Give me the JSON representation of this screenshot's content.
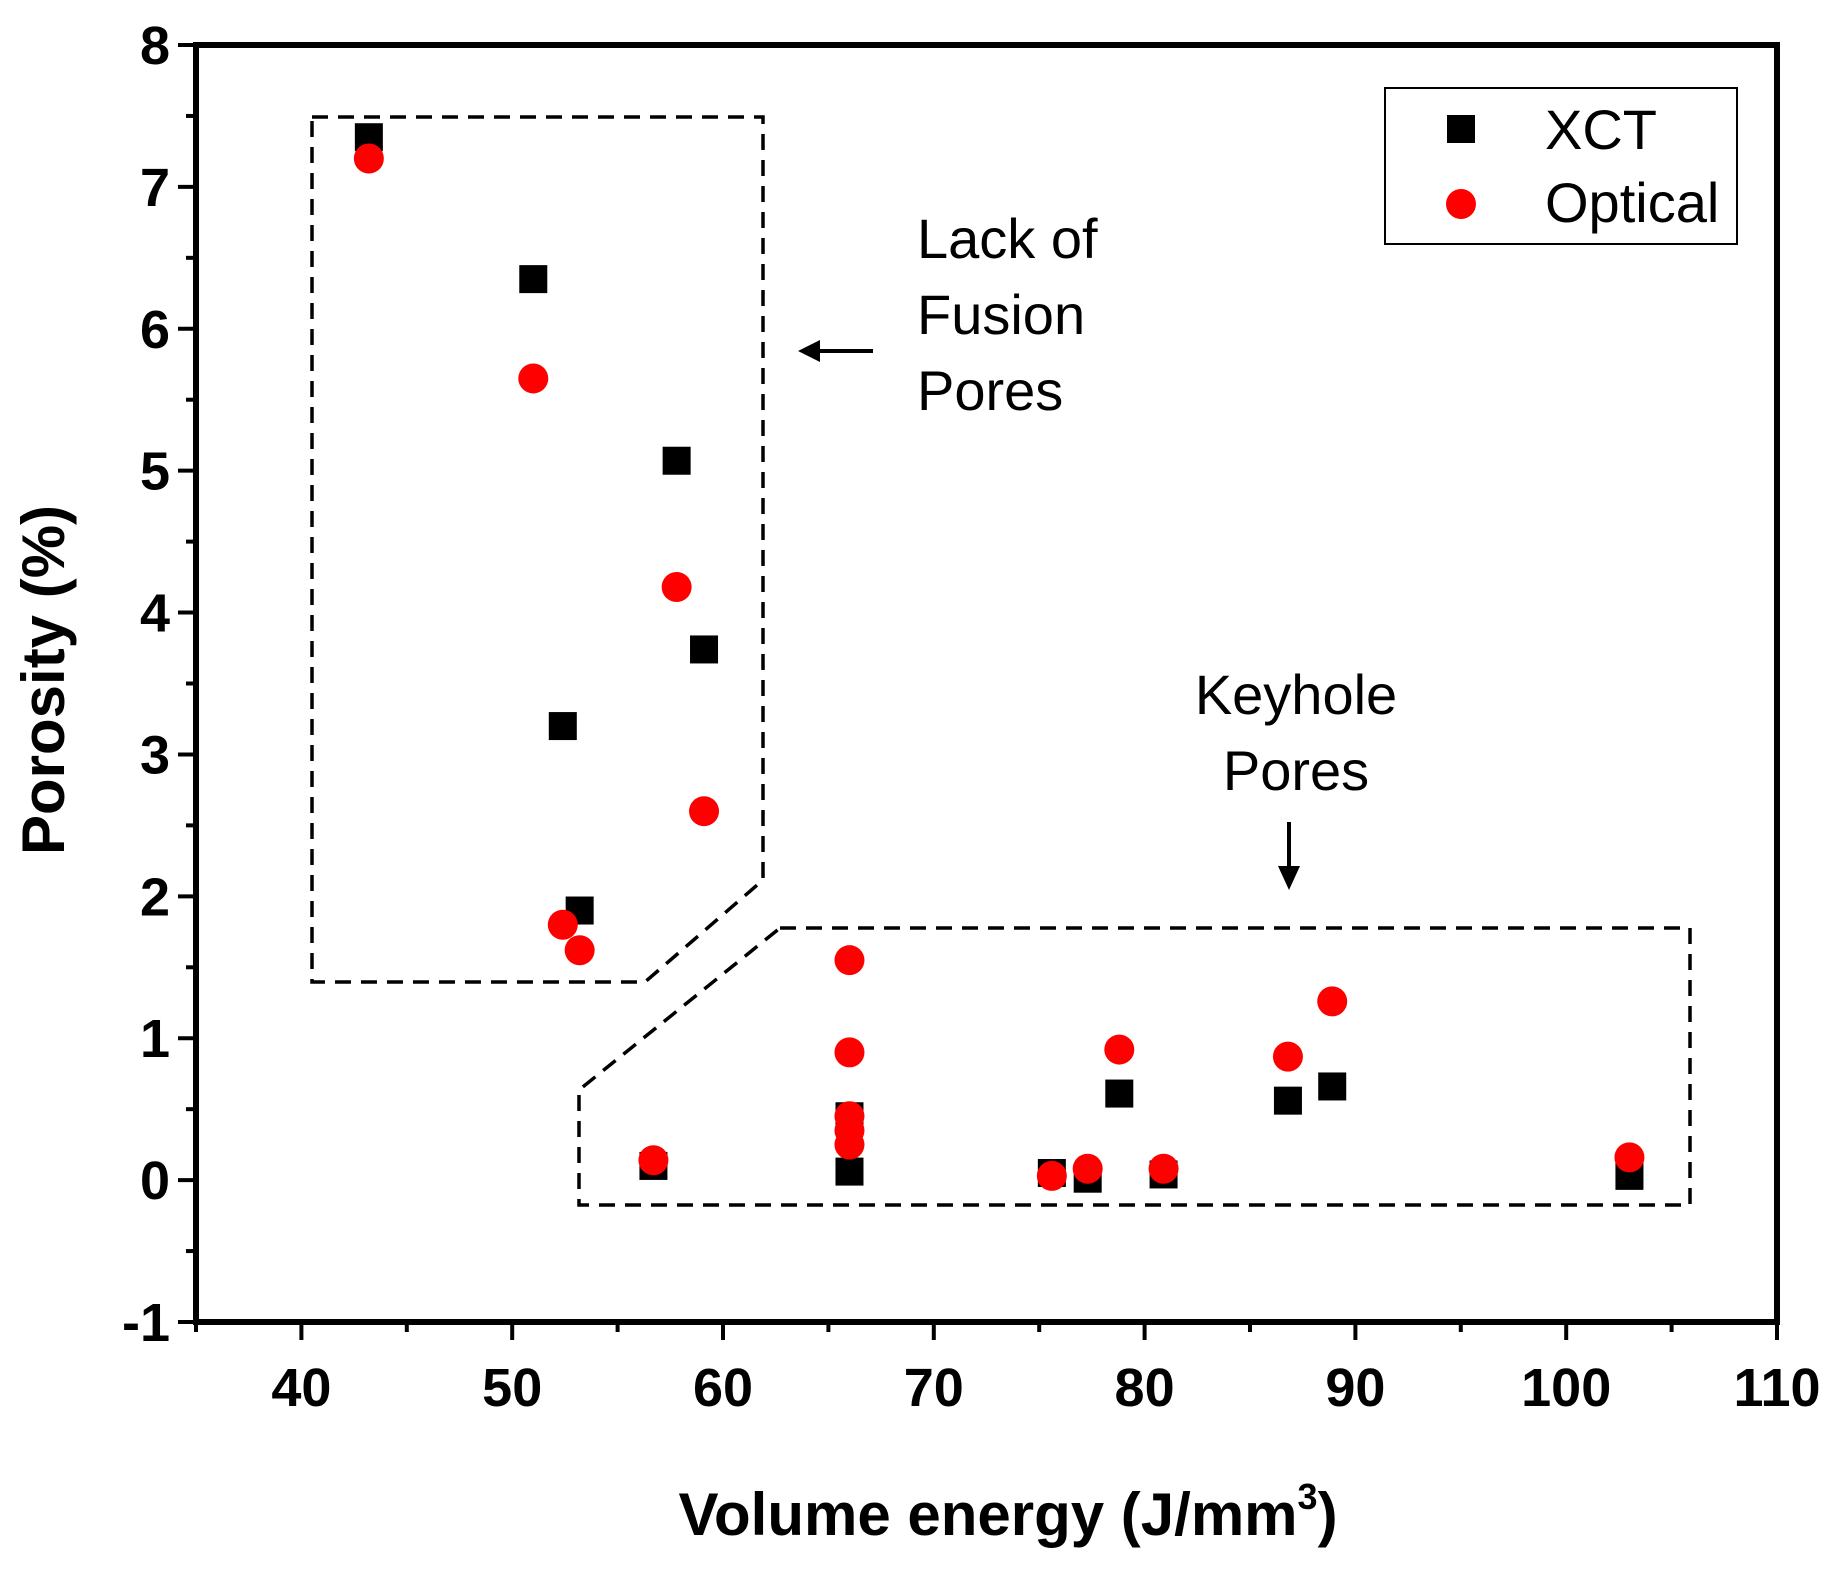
{
  "chart_data": {
    "type": "scatter",
    "xlabel": "Volume energy (J/mm",
    "xlabel_sup": "3",
    "xlabel_end": ")",
    "ylabel": "Porosity (%)",
    "xlim": [
      35,
      110
    ],
    "ylim": [
      -1,
      8
    ],
    "xticks": [
      40,
      50,
      60,
      70,
      80,
      90,
      100,
      110
    ],
    "yticks": [
      -1,
      0,
      1,
      2,
      3,
      4,
      5,
      6,
      7,
      8
    ],
    "legend_position": "top-right",
    "series": [
      {
        "name": "XCT",
        "marker": "square",
        "color": "#000000",
        "points": [
          [
            43.2,
            7.35
          ],
          [
            51.0,
            6.35
          ],
          [
            52.4,
            3.2
          ],
          [
            53.2,
            1.9
          ],
          [
            57.8,
            5.07
          ],
          [
            59.1,
            3.74
          ],
          [
            56.7,
            0.1
          ],
          [
            66.0,
            0.06
          ],
          [
            66.0,
            0.45
          ],
          [
            75.6,
            0.05
          ],
          [
            77.3,
            0.01
          ],
          [
            78.8,
            0.61
          ],
          [
            80.9,
            0.04
          ],
          [
            86.8,
            0.56
          ],
          [
            88.9,
            0.66
          ],
          [
            103.0,
            0.03
          ]
        ]
      },
      {
        "name": "Optical",
        "marker": "circle",
        "color": "#ff0000",
        "points": [
          [
            43.2,
            7.2
          ],
          [
            51.0,
            5.65
          ],
          [
            52.4,
            1.8
          ],
          [
            53.2,
            1.62
          ],
          [
            57.8,
            4.18
          ],
          [
            59.1,
            2.6
          ],
          [
            56.7,
            0.14
          ],
          [
            66.0,
            1.55
          ],
          [
            66.0,
            0.9
          ],
          [
            66.0,
            0.45
          ],
          [
            66.0,
            0.35
          ],
          [
            66.0,
            0.25
          ],
          [
            75.6,
            0.03
          ],
          [
            77.3,
            0.08
          ],
          [
            78.8,
            0.92
          ],
          [
            80.9,
            0.08
          ],
          [
            86.8,
            0.87
          ],
          [
            88.9,
            1.26
          ],
          [
            103.0,
            0.16
          ]
        ]
      }
    ],
    "annotations": [
      {
        "lines": [
          "Lack of",
          "Fusion",
          "Pores"
        ],
        "arrow": "left"
      },
      {
        "lines": [
          "Keyhole",
          "Pores"
        ],
        "arrow": "down"
      }
    ]
  }
}
